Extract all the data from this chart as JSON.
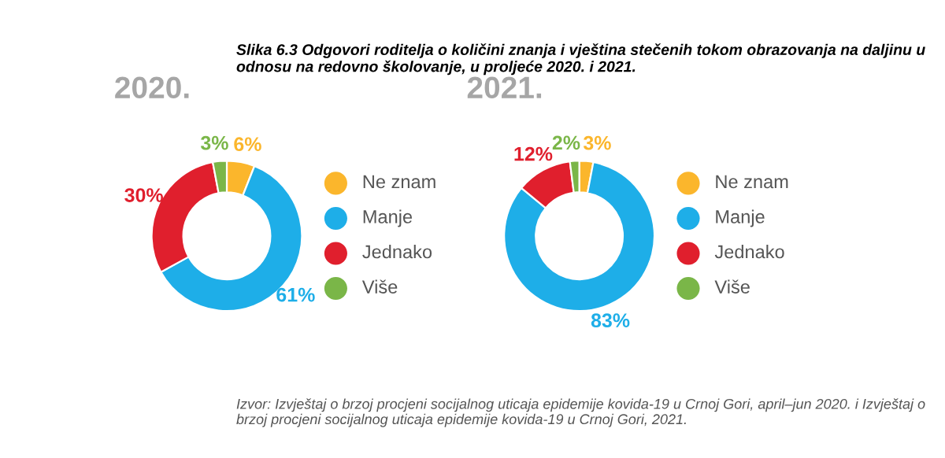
{
  "chart_data": [
    {
      "type": "donut",
      "title": "2020.",
      "categories": [
        "Ne znam",
        "Manje",
        "Jednako",
        "Više"
      ],
      "values": [
        6,
        61,
        30,
        3
      ],
      "colors": [
        "#fbb62c",
        "#1eaee8",
        "#e01f2d",
        "#7ab648"
      ],
      "value_labels": [
        "6%",
        "61%",
        "30%",
        "3%"
      ],
      "legend": "right",
      "annotations": [
        "Slika 6.3 Odgovori roditelja o količini znanja i vještina stečenih tokom obrazovanja na daljinu u odnosu na redovno školovanje, u proljeće 2020. i 2021."
      ]
    },
    {
      "type": "donut",
      "title": "2021.",
      "categories": [
        "Ne znam",
        "Manje",
        "Jednako",
        "Više"
      ],
      "values": [
        3,
        83,
        12,
        2
      ],
      "colors": [
        "#fbb62c",
        "#1eaee8",
        "#e01f2d",
        "#7ab648"
      ],
      "value_labels": [
        "3%",
        "83%",
        "12%",
        "2%"
      ],
      "legend": "right",
      "annotations": [
        "Izvor: Izvještaj o brzoj procjeni socijalnog uticaja epidemije kovida-19 u Crnoj Gori, april–jun 2020. i Izvještaj o brzoj procjeni socijalnog uticaja epidemije kovida-19 u Crnoj Gori, 2021."
      ]
    }
  ]
}
